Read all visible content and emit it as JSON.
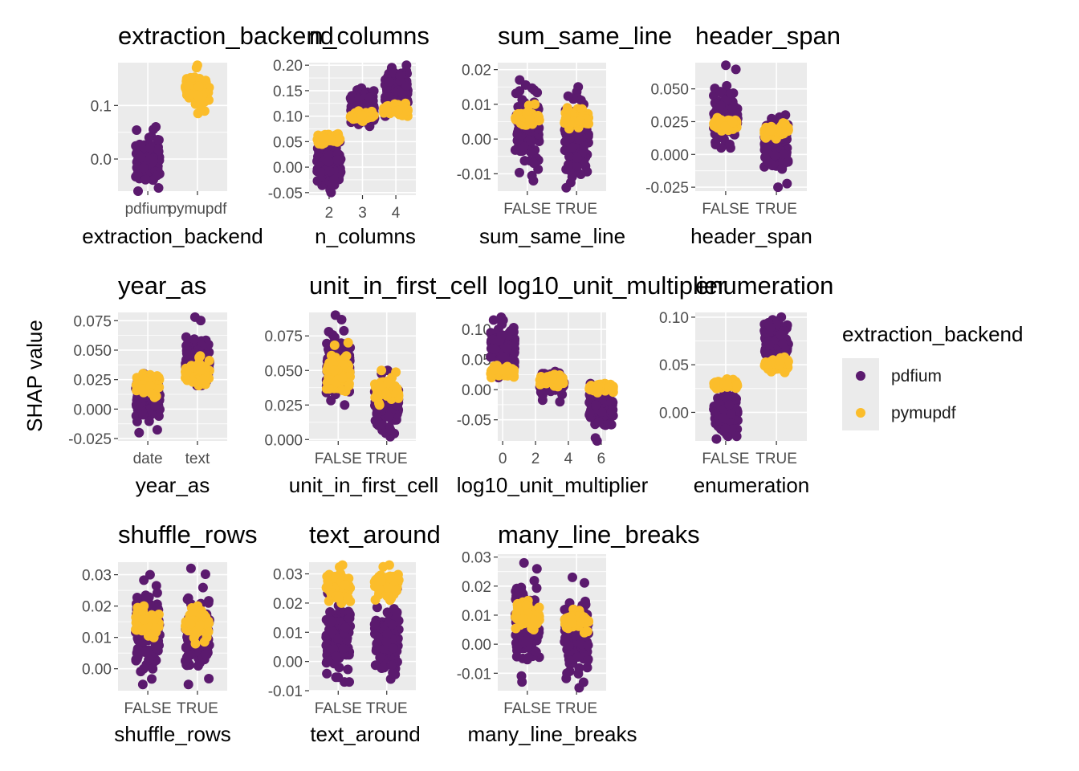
{
  "y_axis_title": "SHAP value",
  "legend": {
    "title": "extraction_backend",
    "items": [
      {
        "label": "pdfium",
        "color": "#5b1a6e"
      },
      {
        "label": "pymupdf",
        "color": "#fbbd2b"
      }
    ]
  },
  "colors": {
    "pdfium": "#5b1a6e",
    "pymupdf": "#fbbd2b",
    "panel_bg": "#ebebeb",
    "grid": "#ffffff"
  },
  "chart_data": [
    {
      "type": "scatter",
      "subtype": "jitter-strip",
      "title": "extraction_backend",
      "xlabel": "extraction_backend",
      "categories": [
        "pdfium",
        "pymupdf"
      ],
      "ylim": [
        -0.06,
        0.18
      ],
      "yticks": [
        0.0,
        0.1
      ],
      "ytick_labels": [
        "0.0",
        "0.1"
      ],
      "groups": [
        {
          "category": "pdfium",
          "series": "pdfium",
          "min": -0.06,
          "max": 0.06,
          "center": 0.0
        },
        {
          "category": "pymupdf",
          "series": "pymupdf",
          "min": 0.085,
          "max": 0.175,
          "center": 0.13
        }
      ]
    },
    {
      "type": "scatter",
      "subtype": "jitter-strip",
      "title": "n_columns",
      "xlabel": "n_columns",
      "categories": [
        "2",
        "3",
        "4"
      ],
      "ylim": [
        -0.055,
        0.205
      ],
      "yticks": [
        -0.05,
        0.0,
        0.05,
        0.1,
        0.15,
        0.2
      ],
      "ytick_labels": [
        "-0.05",
        "0.00",
        "0.05",
        "0.10",
        "0.15",
        "0.20"
      ],
      "groups": [
        {
          "category": "2",
          "series": "pdfium",
          "min": -0.05,
          "max": 0.06,
          "center": 0.0
        },
        {
          "category": "2",
          "series": "pymupdf",
          "min": 0.045,
          "max": 0.065,
          "center": 0.055
        },
        {
          "category": "3",
          "series": "pdfium",
          "min": 0.08,
          "max": 0.155,
          "center": 0.12
        },
        {
          "category": "3",
          "series": "pymupdf",
          "min": 0.09,
          "max": 0.11,
          "center": 0.1
        },
        {
          "category": "4",
          "series": "pdfium",
          "min": 0.1,
          "max": 0.2,
          "center": 0.16
        },
        {
          "category": "4",
          "series": "pymupdf",
          "min": 0.1,
          "max": 0.125,
          "center": 0.112
        }
      ]
    },
    {
      "type": "scatter",
      "subtype": "jitter-strip",
      "title": "sum_same_line",
      "xlabel": "sum_same_line",
      "categories": [
        "FALSE",
        "TRUE"
      ],
      "ylim": [
        -0.015,
        0.022
      ],
      "yticks": [
        -0.01,
        0.0,
        0.01,
        0.02
      ],
      "ytick_labels": [
        "-0.01",
        "0.00",
        "0.01",
        "0.02"
      ],
      "groups": [
        {
          "category": "FALSE",
          "series": "pdfium",
          "min": -0.012,
          "max": 0.017,
          "center": 0.003
        },
        {
          "category": "FALSE",
          "series": "pymupdf",
          "min": 0.004,
          "max": 0.01,
          "center": 0.006
        },
        {
          "category": "TRUE",
          "series": "pdfium",
          "min": -0.014,
          "max": 0.015,
          "center": 0.0
        },
        {
          "category": "TRUE",
          "series": "pymupdf",
          "min": 0.003,
          "max": 0.009,
          "center": 0.006
        }
      ]
    },
    {
      "type": "scatter",
      "subtype": "jitter-strip",
      "title": "header_span",
      "xlabel": "header_span",
      "categories": [
        "FALSE",
        "TRUE"
      ],
      "ylim": [
        -0.028,
        0.07
      ],
      "yticks": [
        -0.025,
        0.0,
        0.025,
        0.05
      ],
      "ytick_labels": [
        "-0.025",
        "0.000",
        "0.025",
        "0.050"
      ],
      "groups": [
        {
          "category": "FALSE",
          "series": "pdfium",
          "min": 0.005,
          "max": 0.068,
          "center": 0.03
        },
        {
          "category": "FALSE",
          "series": "pymupdf",
          "min": 0.018,
          "max": 0.028,
          "center": 0.023
        },
        {
          "category": "TRUE",
          "series": "pdfium",
          "min": -0.025,
          "max": 0.03,
          "center": 0.008
        },
        {
          "category": "TRUE",
          "series": "pymupdf",
          "min": 0.012,
          "max": 0.024,
          "center": 0.018
        }
      ]
    },
    {
      "type": "scatter",
      "subtype": "jitter-strip",
      "title": "year_as",
      "xlabel": "year_as",
      "categories": [
        "date",
        "text"
      ],
      "ylim": [
        -0.027,
        0.082
      ],
      "yticks": [
        -0.025,
        0.0,
        0.025,
        0.05,
        0.075
      ],
      "ytick_labels": [
        "-0.025",
        "0.000",
        "0.025",
        "0.050",
        "0.075"
      ],
      "groups": [
        {
          "category": "date",
          "series": "pdfium",
          "min": -0.02,
          "max": 0.03,
          "center": 0.01
        },
        {
          "category": "date",
          "series": "pymupdf",
          "min": 0.01,
          "max": 0.03,
          "center": 0.02
        },
        {
          "category": "text",
          "series": "pdfium",
          "min": 0.02,
          "max": 0.078,
          "center": 0.04
        },
        {
          "category": "text",
          "series": "pymupdf",
          "min": 0.02,
          "max": 0.045,
          "center": 0.03
        }
      ]
    },
    {
      "type": "scatter",
      "subtype": "jitter-strip",
      "title": "unit_in_first_cell",
      "xlabel": "unit_in_first_cell",
      "categories": [
        "FALSE",
        "TRUE"
      ],
      "ylim": [
        -0.001,
        0.092
      ],
      "yticks": [
        0.0,
        0.025,
        0.05,
        0.075
      ],
      "ytick_labels": [
        "0.000",
        "0.025",
        "0.050",
        "0.075"
      ],
      "groups": [
        {
          "category": "FALSE",
          "series": "pdfium",
          "min": 0.025,
          "max": 0.09,
          "center": 0.055
        },
        {
          "category": "FALSE",
          "series": "pymupdf",
          "min": 0.035,
          "max": 0.07,
          "center": 0.05
        },
        {
          "category": "TRUE",
          "series": "pdfium",
          "min": 0.002,
          "max": 0.05,
          "center": 0.025
        },
        {
          "category": "TRUE",
          "series": "pymupdf",
          "min": 0.025,
          "max": 0.05,
          "center": 0.035
        }
      ]
    },
    {
      "type": "scatter",
      "subtype": "jitter-strip",
      "title": "log10_unit_multiplier",
      "xlabel": "log10_unit_multiplier",
      "categories": [
        0,
        3,
        6
      ],
      "x_numeric": true,
      "xlim": [
        -0.3,
        6.3
      ],
      "xticks": [
        0,
        2,
        4,
        6
      ],
      "ylim": [
        -0.085,
        0.128
      ],
      "yticks": [
        -0.05,
        0.0,
        0.05,
        0.1
      ],
      "ytick_labels": [
        "-0.05",
        "0.00",
        "0.05",
        "0.10"
      ],
      "groups": [
        {
          "category": 0,
          "series": "pdfium",
          "min": 0.02,
          "max": 0.12,
          "center": 0.07
        },
        {
          "category": 0,
          "series": "pymupdf",
          "min": 0.02,
          "max": 0.04,
          "center": 0.03
        },
        {
          "category": 3,
          "series": "pdfium",
          "min": -0.02,
          "max": 0.03,
          "center": 0.01
        },
        {
          "category": 3,
          "series": "pymupdf",
          "min": 0.005,
          "max": 0.025,
          "center": 0.015
        },
        {
          "category": 6,
          "series": "pdfium",
          "min": -0.085,
          "max": 0.01,
          "center": -0.03
        },
        {
          "category": 6,
          "series": "pymupdf",
          "min": -0.005,
          "max": 0.01,
          "center": 0.003
        }
      ]
    },
    {
      "type": "scatter",
      "subtype": "jitter-strip",
      "title": "enumeration",
      "xlabel": "enumeration",
      "categories": [
        "FALSE",
        "TRUE"
      ],
      "ylim": [
        -0.03,
        0.105
      ],
      "yticks": [
        0.0,
        0.05,
        0.1
      ],
      "ytick_labels": [
        "0.00",
        "0.05",
        "0.10"
      ],
      "groups": [
        {
          "category": "FALSE",
          "series": "pdfium",
          "min": -0.028,
          "max": 0.03,
          "center": 0.0
        },
        {
          "category": "FALSE",
          "series": "pymupdf",
          "min": 0.025,
          "max": 0.035,
          "center": 0.03
        },
        {
          "category": "TRUE",
          "series": "pdfium",
          "min": 0.045,
          "max": 0.1,
          "center": 0.075
        },
        {
          "category": "TRUE",
          "series": "pymupdf",
          "min": 0.042,
          "max": 0.058,
          "center": 0.05
        }
      ]
    },
    {
      "type": "scatter",
      "subtype": "jitter-strip",
      "title": "shuffle_rows",
      "xlabel": "shuffle_rows",
      "categories": [
        "FALSE",
        "TRUE"
      ],
      "ylim": [
        -0.007,
        0.034
      ],
      "yticks": [
        0.0,
        0.01,
        0.02,
        0.03
      ],
      "ytick_labels": [
        "0.00",
        "0.01",
        "0.02",
        "0.03"
      ],
      "groups": [
        {
          "category": "FALSE",
          "series": "pdfium",
          "min": -0.005,
          "max": 0.03,
          "center": 0.013
        },
        {
          "category": "FALSE",
          "series": "pymupdf",
          "min": 0.01,
          "max": 0.02,
          "center": 0.015
        },
        {
          "category": "TRUE",
          "series": "pdfium",
          "min": -0.005,
          "max": 0.032,
          "center": 0.01
        },
        {
          "category": "TRUE",
          "series": "pymupdf",
          "min": 0.008,
          "max": 0.02,
          "center": 0.014
        }
      ]
    },
    {
      "type": "scatter",
      "subtype": "jitter-strip",
      "title": "text_around",
      "xlabel": "text_around",
      "categories": [
        "FALSE",
        "TRUE"
      ],
      "ylim": [
        -0.01,
        0.034
      ],
      "yticks": [
        -0.01,
        0.0,
        0.01,
        0.02,
        0.03
      ],
      "ytick_labels": [
        "-0.01",
        "0.00",
        "0.01",
        "0.02",
        "0.03"
      ],
      "groups": [
        {
          "category": "FALSE",
          "series": "pdfium",
          "min": -0.007,
          "max": 0.025,
          "center": 0.008
        },
        {
          "category": "FALSE",
          "series": "pymupdf",
          "min": 0.02,
          "max": 0.033,
          "center": 0.026
        },
        {
          "category": "TRUE",
          "series": "pdfium",
          "min": -0.006,
          "max": 0.025,
          "center": 0.008
        },
        {
          "category": "TRUE",
          "series": "pymupdf",
          "min": 0.021,
          "max": 0.033,
          "center": 0.026
        }
      ]
    },
    {
      "type": "scatter",
      "subtype": "jitter-strip",
      "title": "many_line_breaks",
      "xlabel": "many_line_breaks",
      "categories": [
        "FALSE",
        "TRUE"
      ],
      "ylim": [
        -0.016,
        0.031
      ],
      "yticks": [
        -0.01,
        0.0,
        0.01,
        0.02,
        0.03
      ],
      "ytick_labels": [
        "-0.01",
        "0.00",
        "0.01",
        "0.02",
        "0.03"
      ],
      "groups": [
        {
          "category": "FALSE",
          "series": "pdfium",
          "min": -0.013,
          "max": 0.028,
          "center": 0.007
        },
        {
          "category": "FALSE",
          "series": "pymupdf",
          "min": 0.005,
          "max": 0.015,
          "center": 0.01
        },
        {
          "category": "TRUE",
          "series": "pdfium",
          "min": -0.015,
          "max": 0.023,
          "center": 0.004
        },
        {
          "category": "TRUE",
          "series": "pymupdf",
          "min": 0.004,
          "max": 0.012,
          "center": 0.008
        }
      ]
    }
  ]
}
